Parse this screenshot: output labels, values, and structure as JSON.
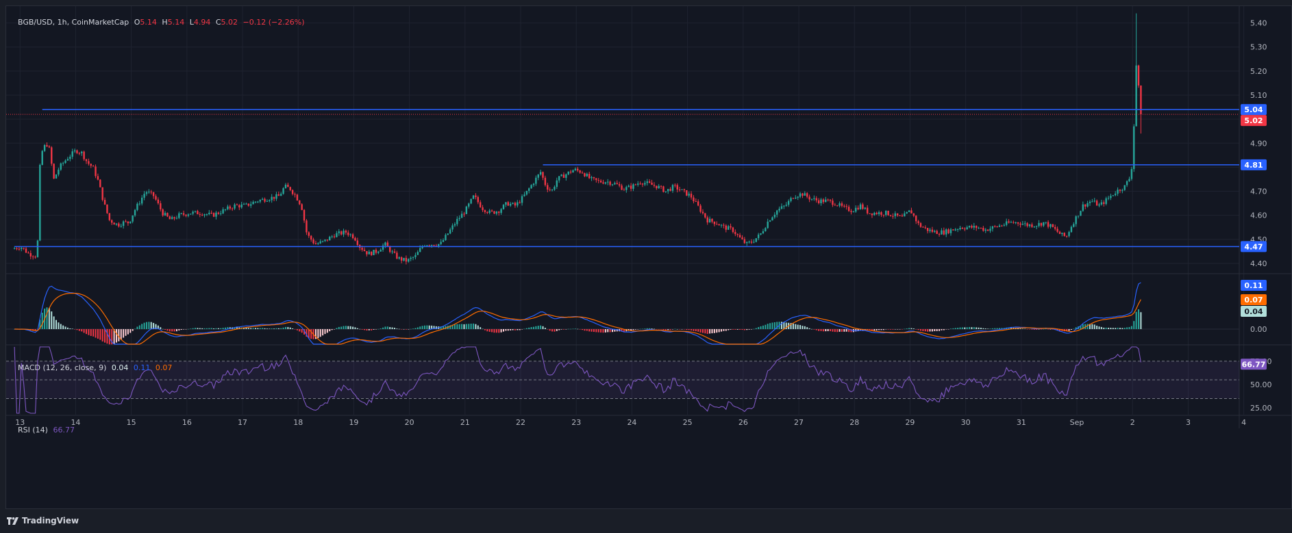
{
  "header": {
    "symbol": "BGB/USD, 1h, CoinMarketCap",
    "o_label": "O",
    "open": "5.14",
    "h_label": "H",
    "high": "5.14",
    "l_label": "L",
    "low": "4.94",
    "c_label": "C",
    "close": "5.02",
    "change": "−0.12 (−2.26%)"
  },
  "macd_legend": {
    "name": "MACD (12, 26, close, 9)",
    "hist": "0.04",
    "macd": "0.11",
    "signal": "0.07"
  },
  "rsi_legend": {
    "name": "RSI (14)",
    "value": "66.77"
  },
  "footer": {
    "brand": "TradingView"
  },
  "colors": {
    "up": "#26a69a",
    "down": "#f23645",
    "level": "#2962ff",
    "macd": "#2962ff",
    "signal": "#ff6d00",
    "rsi": "#7e57c2"
  },
  "chart_data": {
    "type": "candlestick",
    "title": "BGB/USD, 1h, CoinMarketCap",
    "price_axis": {
      "ticks": [
        4.4,
        4.5,
        4.6,
        4.7,
        4.8,
        4.9,
        5.0,
        5.1,
        5.2,
        5.3,
        5.4
      ],
      "range": [
        4.36,
        5.47
      ]
    },
    "x_ticks": [
      "13",
      "14",
      "15",
      "16",
      "17",
      "18",
      "19",
      "20",
      "21",
      "22",
      "23",
      "24",
      "25",
      "26",
      "27",
      "28",
      "29",
      "30",
      "31",
      "Sep",
      "2",
      "3",
      "4"
    ],
    "price_path": [
      [
        12.9,
        4.46
      ],
      [
        13.05,
        4.47
      ],
      [
        13.2,
        4.44
      ],
      [
        13.35,
        4.43
      ],
      [
        13.4,
        4.8
      ],
      [
        13.45,
        4.88
      ],
      [
        13.55,
        4.9
      ],
      [
        13.65,
        4.75
      ],
      [
        13.75,
        4.8
      ],
      [
        13.9,
        4.84
      ],
      [
        14.05,
        4.87
      ],
      [
        14.15,
        4.86
      ],
      [
        14.25,
        4.82
      ],
      [
        14.35,
        4.8
      ],
      [
        14.45,
        4.74
      ],
      [
        14.55,
        4.65
      ],
      [
        14.65,
        4.58
      ],
      [
        14.8,
        4.56
      ],
      [
        14.9,
        4.57
      ],
      [
        15.0,
        4.57
      ],
      [
        15.1,
        4.62
      ],
      [
        15.2,
        4.66
      ],
      [
        15.3,
        4.7
      ],
      [
        15.45,
        4.68
      ],
      [
        15.6,
        4.61
      ],
      [
        15.75,
        4.58
      ],
      [
        15.9,
        4.6
      ],
      [
        16.1,
        4.61
      ],
      [
        16.3,
        4.61
      ],
      [
        16.5,
        4.6
      ],
      [
        16.7,
        4.62
      ],
      [
        16.9,
        4.64
      ],
      [
        17.1,
        4.64
      ],
      [
        17.3,
        4.66
      ],
      [
        17.5,
        4.67
      ],
      [
        17.7,
        4.68
      ],
      [
        17.8,
        4.72
      ],
      [
        17.9,
        4.71
      ],
      [
        18.0,
        4.68
      ],
      [
        18.1,
        4.64
      ],
      [
        18.2,
        4.52
      ],
      [
        18.35,
        4.48
      ],
      [
        18.5,
        4.49
      ],
      [
        18.7,
        4.52
      ],
      [
        18.9,
        4.53
      ],
      [
        19.05,
        4.51
      ],
      [
        19.15,
        4.47
      ],
      [
        19.3,
        4.44
      ],
      [
        19.45,
        4.45
      ],
      [
        19.6,
        4.48
      ],
      [
        19.75,
        4.44
      ],
      [
        19.85,
        4.42
      ],
      [
        20.0,
        4.41
      ],
      [
        20.15,
        4.43
      ],
      [
        20.3,
        4.48
      ],
      [
        20.45,
        4.48
      ],
      [
        20.6,
        4.48
      ],
      [
        20.75,
        4.53
      ],
      [
        20.9,
        4.58
      ],
      [
        21.05,
        4.62
      ],
      [
        21.2,
        4.68
      ],
      [
        21.35,
        4.63
      ],
      [
        21.5,
        4.61
      ],
      [
        21.65,
        4.62
      ],
      [
        21.8,
        4.65
      ],
      [
        21.95,
        4.64
      ],
      [
        22.1,
        4.68
      ],
      [
        22.25,
        4.73
      ],
      [
        22.4,
        4.78
      ],
      [
        22.5,
        4.72
      ],
      [
        22.6,
        4.7
      ],
      [
        22.7,
        4.75
      ],
      [
        22.85,
        4.77
      ],
      [
        23.0,
        4.79
      ],
      [
        23.15,
        4.78
      ],
      [
        23.3,
        4.75
      ],
      [
        23.45,
        4.74
      ],
      [
        23.6,
        4.74
      ],
      [
        23.75,
        4.73
      ],
      [
        23.9,
        4.71
      ],
      [
        24.05,
        4.72
      ],
      [
        24.2,
        4.74
      ],
      [
        24.35,
        4.73
      ],
      [
        24.5,
        4.72
      ],
      [
        24.65,
        4.7
      ],
      [
        24.8,
        4.72
      ],
      [
        24.95,
        4.7
      ],
      [
        25.1,
        4.68
      ],
      [
        25.25,
        4.63
      ],
      [
        25.4,
        4.58
      ],
      [
        25.55,
        4.57
      ],
      [
        25.7,
        4.55
      ],
      [
        25.85,
        4.54
      ],
      [
        26.0,
        4.5
      ],
      [
        26.1,
        4.48
      ],
      [
        26.2,
        4.49
      ],
      [
        26.35,
        4.52
      ],
      [
        26.5,
        4.58
      ],
      [
        26.65,
        4.62
      ],
      [
        26.8,
        4.64
      ],
      [
        26.95,
        4.68
      ],
      [
        27.1,
        4.69
      ],
      [
        27.25,
        4.67
      ],
      [
        27.4,
        4.66
      ],
      [
        27.55,
        4.66
      ],
      [
        27.7,
        4.65
      ],
      [
        27.85,
        4.63
      ],
      [
        28.0,
        4.62
      ],
      [
        28.15,
        4.64
      ],
      [
        28.3,
        4.61
      ],
      [
        28.45,
        4.61
      ],
      [
        28.6,
        4.61
      ],
      [
        28.75,
        4.6
      ],
      [
        28.9,
        4.59
      ],
      [
        29.05,
        4.62
      ],
      [
        29.2,
        4.56
      ],
      [
        29.35,
        4.54
      ],
      [
        29.5,
        4.53
      ],
      [
        29.65,
        4.53
      ],
      [
        29.8,
        4.54
      ],
      [
        29.95,
        4.55
      ],
      [
        30.1,
        4.55
      ],
      [
        30.25,
        4.55
      ],
      [
        30.4,
        4.54
      ],
      [
        30.55,
        4.55
      ],
      [
        30.7,
        4.56
      ],
      [
        30.85,
        4.57
      ],
      [
        31.0,
        4.57
      ],
      [
        31.15,
        4.56
      ],
      [
        31.3,
        4.56
      ],
      [
        31.45,
        4.57
      ],
      [
        31.6,
        4.55
      ],
      [
        31.75,
        4.52
      ],
      [
        31.85,
        4.51
      ],
      [
        31.95,
        4.56
      ],
      [
        32.05,
        4.6
      ],
      [
        32.15,
        4.64
      ],
      [
        32.3,
        4.66
      ],
      [
        32.45,
        4.64
      ],
      [
        32.6,
        4.67
      ],
      [
        32.75,
        4.7
      ],
      [
        32.9,
        4.72
      ],
      [
        33.0,
        4.76
      ],
      [
        33.05,
        4.84
      ],
      [
        33.1,
        5.24
      ],
      [
        33.15,
        5.14
      ],
      [
        33.18,
        5.02
      ]
    ],
    "levels": [
      {
        "label": "5.04",
        "value": 5.04,
        "from": 13.4
      },
      {
        "label": "4.81",
        "value": 4.81,
        "from": 22.4
      },
      {
        "label": "4.47",
        "value": 4.47,
        "from": 12.9
      }
    ],
    "last_price": {
      "label": "5.02",
      "value": 5.02
    },
    "macd": {
      "ticks": [
        "0.00"
      ],
      "values": {
        "macd": 0.11,
        "signal": 0.07,
        "histogram": 0.04
      },
      "labels": {
        "macd": "0.11",
        "signal": "0.07",
        "histogram": "0.04"
      }
    },
    "rsi": {
      "ticks": [
        "75.00",
        "50.00",
        "25.00"
      ],
      "bands": [
        70,
        50,
        30
      ],
      "value": 66.77,
      "label": "66.77"
    }
  }
}
